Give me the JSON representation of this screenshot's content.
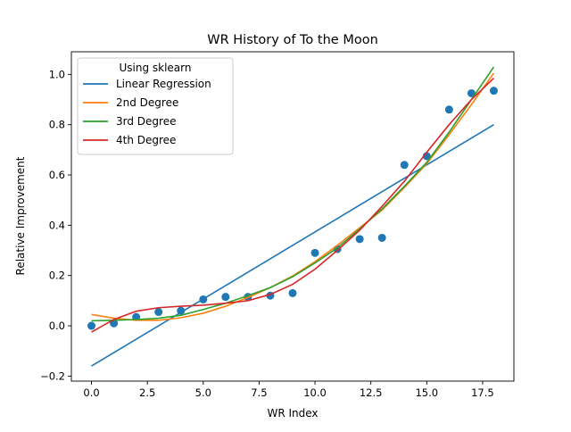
{
  "chart_data": {
    "type": "line",
    "title": "WR History of To the Moon",
    "xlabel": "WR Index",
    "ylabel": "Relative Improvement",
    "xlim": [
      -0.9,
      18.9
    ],
    "ylim": [
      -0.22,
      1.09
    ],
    "xticks": [
      {
        "value": 0,
        "label": "0.0"
      },
      {
        "value": 2.5,
        "label": "2.5"
      },
      {
        "value": 5,
        "label": "5.0"
      },
      {
        "value": 7.5,
        "label": "7.5"
      },
      {
        "value": 10,
        "label": "10.0"
      },
      {
        "value": 12.5,
        "label": "12.5"
      },
      {
        "value": 15,
        "label": "15.0"
      },
      {
        "value": 17.5,
        "label": "17.5"
      }
    ],
    "yticks": [
      {
        "value": -0.2,
        "label": "−0.2"
      },
      {
        "value": 0,
        "label": "0.0"
      },
      {
        "value": 0.2,
        "label": "0.2"
      },
      {
        "value": 0.4,
        "label": "0.4"
      },
      {
        "value": 0.6,
        "label": "0.6"
      },
      {
        "value": 0.8,
        "label": "0.8"
      },
      {
        "value": 1.0,
        "label": "1.0"
      }
    ],
    "legend": {
      "title": "Using sklearn",
      "position": "top-left"
    },
    "grid": false,
    "scatter": {
      "color": "#1f77b4",
      "x": [
        0,
        1,
        2,
        3,
        4,
        5,
        6,
        7,
        8,
        9,
        10,
        11,
        12,
        13,
        14,
        15,
        16,
        17,
        18
      ],
      "y": [
        0.0,
        0.01,
        0.035,
        0.055,
        0.06,
        0.105,
        0.115,
        0.115,
        0.12,
        0.13,
        0.29,
        0.305,
        0.345,
        0.35,
        0.64,
        0.675,
        0.86,
        0.925,
        0.935
      ]
    },
    "series": [
      {
        "name": "Linear Regression",
        "color": "#1f77b4",
        "x": [
          0,
          18
        ],
        "y": [
          -0.16,
          0.8
        ]
      },
      {
        "name": "2nd Degree",
        "color": "#ff7f0e",
        "x": [
          0,
          1,
          2,
          3,
          4,
          5,
          6,
          7,
          8,
          9,
          10,
          11,
          12,
          13,
          14,
          15,
          16,
          17,
          18
        ],
        "y": [
          0.045,
          0.03,
          0.022,
          0.022,
          0.032,
          0.05,
          0.078,
          0.113,
          0.152,
          0.198,
          0.255,
          0.32,
          0.39,
          0.46,
          0.55,
          0.645,
          0.76,
          0.88,
          1.005
        ]
      },
      {
        "name": "3rd Degree",
        "color": "#2ca02c",
        "x": [
          0,
          1,
          2,
          3,
          4,
          5,
          6,
          7,
          8,
          9,
          10,
          11,
          12,
          13,
          14,
          15,
          16,
          17,
          18
        ],
        "y": [
          0.02,
          0.022,
          0.025,
          0.03,
          0.042,
          0.065,
          0.09,
          0.12,
          0.152,
          0.195,
          0.25,
          0.31,
          0.385,
          0.465,
          0.555,
          0.65,
          0.77,
          0.9,
          1.03
        ]
      },
      {
        "name": "4th Degree",
        "color": "#d62728",
        "x": [
          0,
          1,
          2,
          3,
          4,
          5,
          6,
          7,
          8,
          9,
          10,
          11,
          12,
          13,
          14,
          15,
          16,
          17,
          18
        ],
        "y": [
          -0.025,
          0.025,
          0.058,
          0.072,
          0.078,
          0.082,
          0.09,
          0.1,
          0.125,
          0.165,
          0.225,
          0.3,
          0.38,
          0.475,
          0.575,
          0.69,
          0.8,
          0.9,
          0.985
        ]
      }
    ]
  }
}
